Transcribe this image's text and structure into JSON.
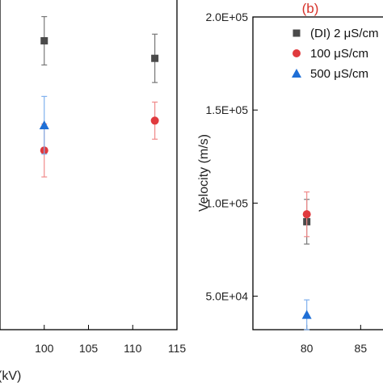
{
  "colors": {
    "di": "#4a4a4a",
    "s100": "#e03a3e",
    "s500": "#1f6fd6",
    "err_di": "#777777",
    "err_100": "#f08a8a",
    "err_500": "#7fb0ee",
    "panel_tag": "#d6322a"
  },
  "chart_data": [
    {
      "type": "scatter",
      "panel": "a",
      "xlabel": "(kV)",
      "ylabel": "",
      "xlim": [
        95,
        115
      ],
      "ylim": [
        0,
        1
      ],
      "x_ticks": [
        "100",
        "105",
        "110",
        "115"
      ],
      "x_tick_values": [
        100,
        105,
        110,
        115
      ],
      "series": [
        {
          "key": "di",
          "marker": "square",
          "x": [
            100,
            112.5
          ],
          "y": [
            0.872,
            0.819
          ],
          "err": [
            0.073,
            0.073
          ]
        },
        {
          "key": "s100",
          "marker": "circle",
          "x": [
            100,
            112.5
          ],
          "y": [
            0.541,
            0.631
          ],
          "err": [
            0.08,
            0.056
          ]
        },
        {
          "key": "s500",
          "marker": "triangle",
          "x": [
            100
          ],
          "y": [
            0.617
          ],
          "err": [
            0.087
          ]
        }
      ]
    },
    {
      "type": "scatter",
      "panel": "b",
      "title": "(b)",
      "xlabel": "",
      "ylabel": "Velocity (m/s)",
      "xlim": [
        75,
        90
      ],
      "ylim": [
        32000,
        200000
      ],
      "y_ticks": [
        "5.0E+04",
        "1.0E+05",
        "1.5E+05",
        "2.0E+05"
      ],
      "y_tick_values": [
        50000,
        100000,
        150000,
        200000
      ],
      "x_ticks": [
        "80",
        "85"
      ],
      "x_tick_values": [
        80,
        85
      ],
      "legend_position": "top-right",
      "legend": [
        {
          "key": "di",
          "marker": "square",
          "label": "(DI) 2 μS/cm"
        },
        {
          "key": "s100",
          "marker": "circle",
          "label": "100 μS/cm"
        },
        {
          "key": "s500",
          "marker": "triangle",
          "label": "500 μS/cm"
        }
      ],
      "series": [
        {
          "key": "di",
          "marker": "square",
          "x": [
            80
          ],
          "y": [
            90000
          ],
          "err": [
            12000
          ]
        },
        {
          "key": "s100",
          "marker": "circle",
          "x": [
            80
          ],
          "y": [
            94000
          ],
          "err": [
            12000
          ]
        },
        {
          "key": "s500",
          "marker": "triangle",
          "x": [
            80
          ],
          "y": [
            40000
          ],
          "err": [
            8000
          ]
        }
      ]
    }
  ]
}
